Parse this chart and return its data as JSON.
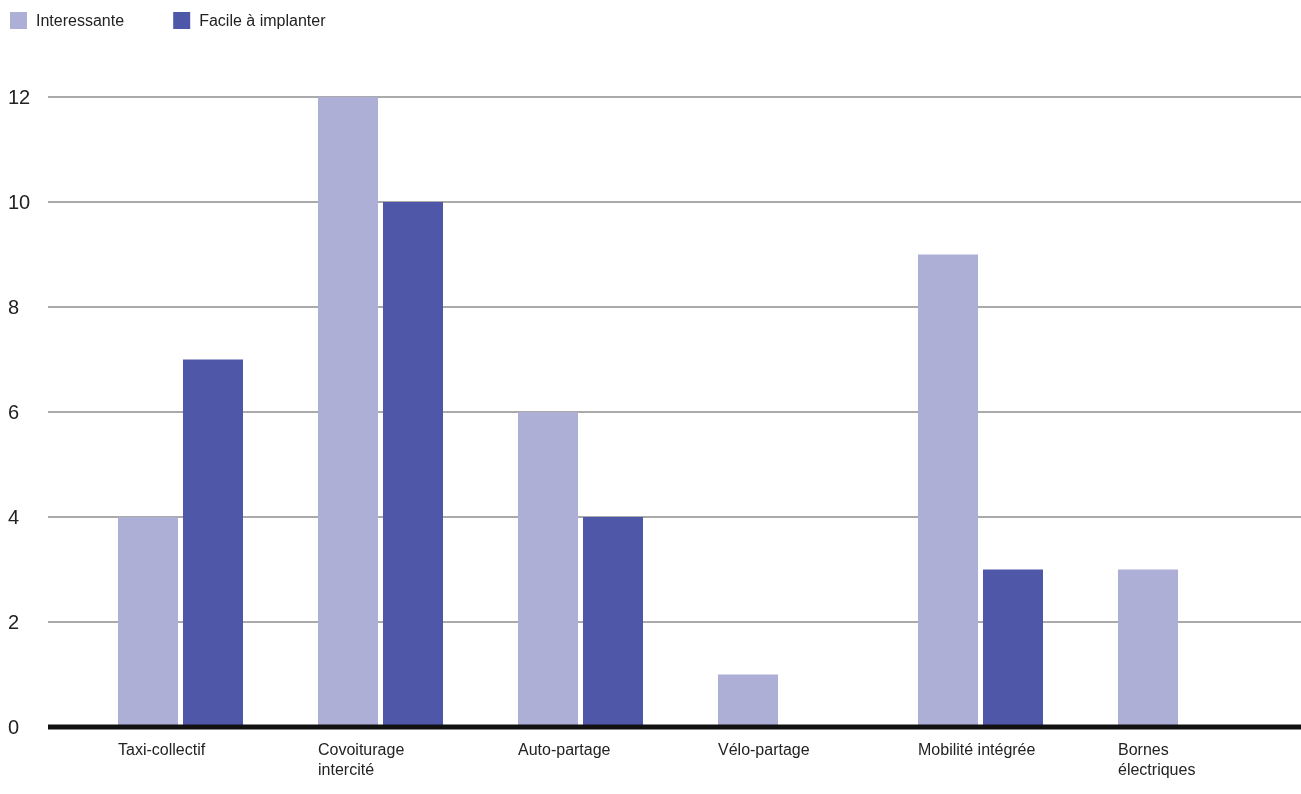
{
  "chart_data": {
    "type": "bar",
    "categories": [
      "Taxi-collectif",
      "Covoiturage intercité",
      "Auto-partage",
      "Vélo-partage",
      "Mobilité intégrée",
      "Bornes électriques"
    ],
    "series": [
      {
        "name": "Interessante",
        "color": "#adafd6",
        "values": [
          4,
          12,
          6,
          1,
          9,
          3
        ]
      },
      {
        "name": "Facile à implanter",
        "color": "#4f58a8",
        "values": [
          7,
          10,
          4,
          0,
          3,
          0
        ]
      }
    ],
    "ylim": [
      0,
      12
    ],
    "yticks": [
      0,
      2,
      4,
      6,
      8,
      10,
      12
    ],
    "grid": "y",
    "legend": "top left"
  }
}
